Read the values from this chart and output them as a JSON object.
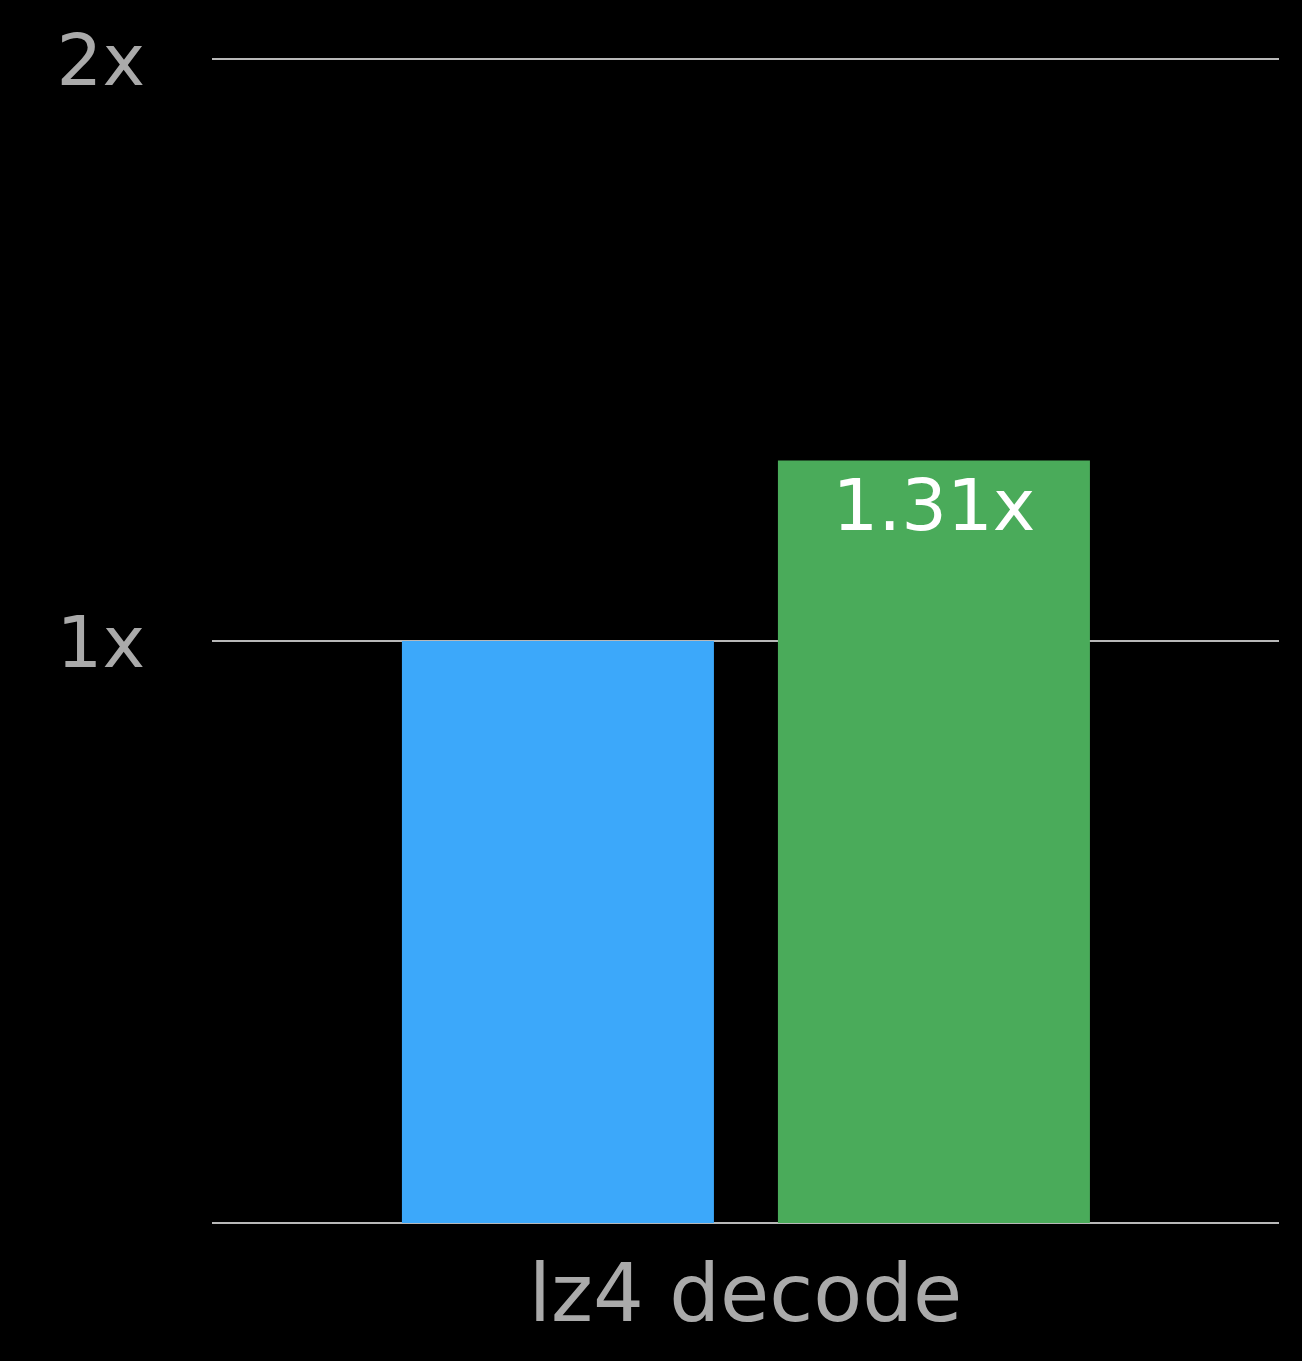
{
  "chart_data": {
    "type": "bar",
    "categories": [
      "lz4 decode"
    ],
    "series": [
      {
        "color": "#3ca8fa",
        "values": [
          1
        ]
      },
      {
        "color": "#4aab5a",
        "values": [
          1.31
        ],
        "value_labels": [
          "1.31x"
        ]
      }
    ],
    "ylim": [
      0,
      2
    ],
    "yticks": [
      {
        "value": 0,
        "label": null
      },
      {
        "value": 1,
        "label": "1x"
      },
      {
        "value": 2,
        "label": "2x"
      }
    ],
    "grid": "y"
  }
}
